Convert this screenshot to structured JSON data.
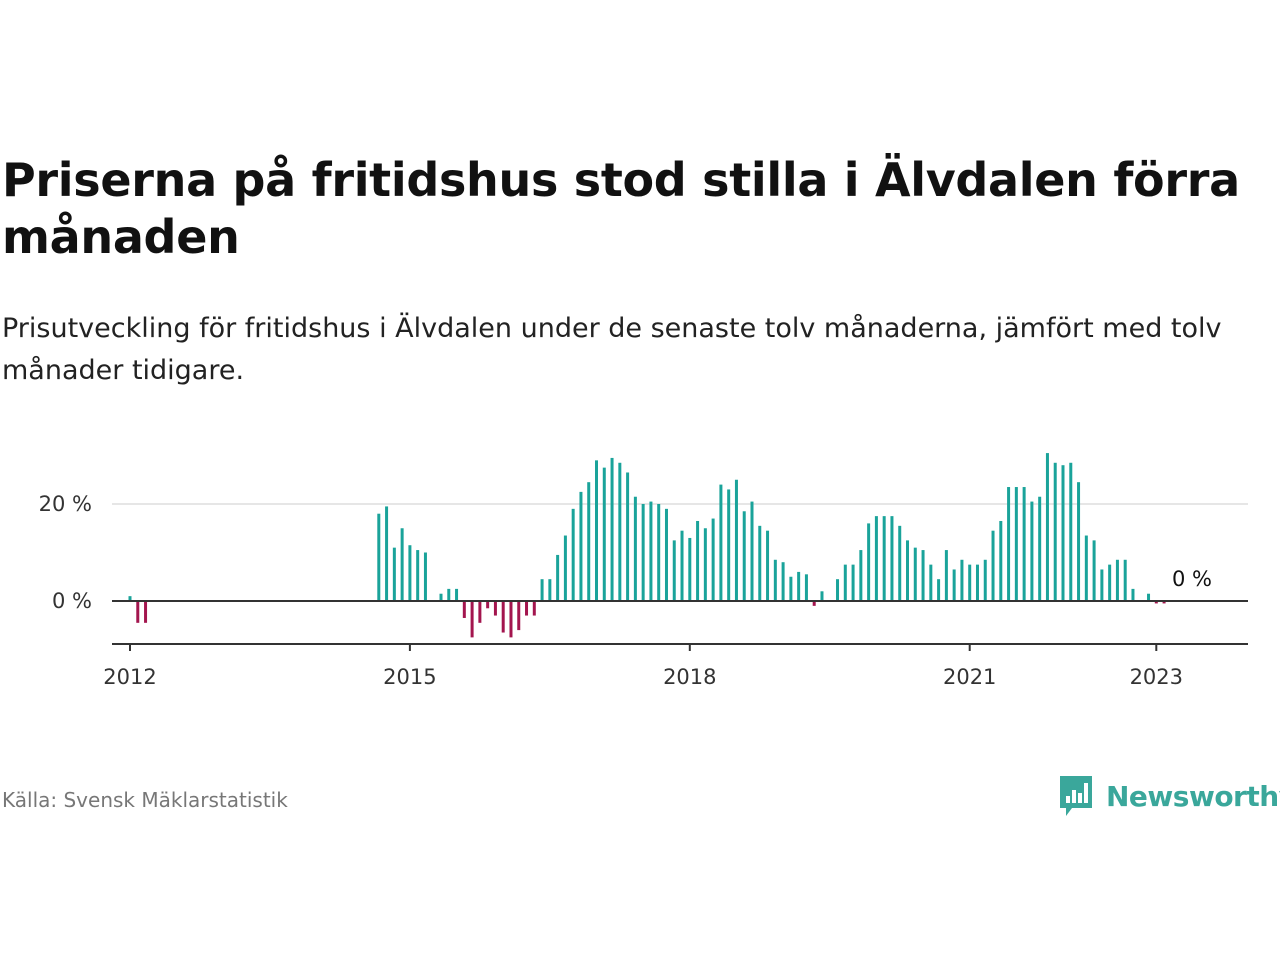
{
  "title": "Priserna på fritidshus stod stilla i Älvdalen förra månaden",
  "subtitle": "Prisutveckling för fritidshus i Älvdalen under de senaste tolv månaderna, jämfört med tolv månader tidigare.",
  "source": "Källa: Svensk Mäklarstatistik",
  "brand": {
    "name": "Newsworthy",
    "icon": "bar-chart-speech-bubble-icon",
    "color": "#3aa79b"
  },
  "colors": {
    "positive": "#1aa39a",
    "negative": "#a3154e",
    "axis": "#333333",
    "grid": "#dddddd"
  },
  "chart_data": {
    "type": "bar",
    "title": "Priserna på fritidshus stod stilla i Älvdalen förra månaden",
    "subtitle": "Prisutveckling för fritidshus i Älvdalen under de senaste tolv månaderna, jämfört med tolv månader tidigare.",
    "xlabel": "",
    "ylabel": "",
    "unit": "%",
    "x_start": "2011-12",
    "x_end": "2023-06",
    "ylim": [
      -9,
      32
    ],
    "y_ticks": [
      {
        "value": 0,
        "label": "0 %"
      },
      {
        "value": 20,
        "label": "20 %"
      }
    ],
    "x_ticks": [
      {
        "date": "2012-01",
        "label": "2012"
      },
      {
        "date": "2015-01",
        "label": "2015"
      },
      {
        "date": "2018-01",
        "label": "2018"
      },
      {
        "date": "2021-01",
        "label": "2021"
      },
      {
        "date": "2023-01",
        "label": "2023"
      }
    ],
    "grid": "horizontal",
    "series": [
      {
        "values": [
          [
            "2012-01",
            1
          ],
          [
            "2012-02",
            -4.5
          ],
          [
            "2012-03",
            -4.5
          ],
          [
            "2014-09",
            18
          ],
          [
            "2014-10",
            19.5
          ],
          [
            "2014-11",
            11
          ],
          [
            "2014-12",
            15
          ],
          [
            "2015-01",
            11.5
          ],
          [
            "2015-02",
            10.5
          ],
          [
            "2015-03",
            10
          ],
          [
            "2015-05",
            1.5
          ],
          [
            "2015-06",
            2.5
          ],
          [
            "2015-07",
            2.5
          ],
          [
            "2015-08",
            -3.5
          ],
          [
            "2015-09",
            -7.5
          ],
          [
            "2015-10",
            -4.5
          ],
          [
            "2015-11",
            -1.5
          ],
          [
            "2015-12",
            -3
          ],
          [
            "2016-01",
            -6.5
          ],
          [
            "2016-02",
            -7.5
          ],
          [
            "2016-03",
            -6
          ],
          [
            "2016-04",
            -3
          ],
          [
            "2016-05",
            -3
          ],
          [
            "2016-06",
            4.5
          ],
          [
            "2016-07",
            4.5
          ],
          [
            "2016-08",
            9.5
          ],
          [
            "2016-09",
            13.5
          ],
          [
            "2016-10",
            19
          ],
          [
            "2016-11",
            22.5
          ],
          [
            "2016-12",
            24.5
          ],
          [
            "2017-01",
            29
          ],
          [
            "2017-02",
            27.5
          ],
          [
            "2017-03",
            29.5
          ],
          [
            "2017-04",
            28.5
          ],
          [
            "2017-05",
            26.5
          ],
          [
            "2017-06",
            21.5
          ],
          [
            "2017-07",
            20
          ],
          [
            "2017-08",
            20.5
          ],
          [
            "2017-09",
            20
          ],
          [
            "2017-10",
            19
          ],
          [
            "2017-11",
            12.5
          ],
          [
            "2017-12",
            14.5
          ],
          [
            "2018-01",
            13
          ],
          [
            "2018-02",
            16.5
          ],
          [
            "2018-03",
            15
          ],
          [
            "2018-04",
            17
          ],
          [
            "2018-05",
            24
          ],
          [
            "2018-06",
            23
          ],
          [
            "2018-07",
            25
          ],
          [
            "2018-08",
            18.5
          ],
          [
            "2018-09",
            20.5
          ],
          [
            "2018-10",
            15.5
          ],
          [
            "2018-11",
            14.5
          ],
          [
            "2018-12",
            8.5
          ],
          [
            "2019-01",
            8
          ],
          [
            "2019-02",
            5
          ],
          [
            "2019-03",
            6
          ],
          [
            "2019-04",
            5.5
          ],
          [
            "2019-05",
            -1
          ],
          [
            "2019-06",
            2
          ],
          [
            "2019-08",
            4.5
          ],
          [
            "2019-09",
            7.5
          ],
          [
            "2019-10",
            7.5
          ],
          [
            "2019-11",
            10.5
          ],
          [
            "2019-12",
            16
          ],
          [
            "2020-01",
            17.5
          ],
          [
            "2020-02",
            17.5
          ],
          [
            "2020-03",
            17.5
          ],
          [
            "2020-04",
            15.5
          ],
          [
            "2020-05",
            12.5
          ],
          [
            "2020-06",
            11
          ],
          [
            "2020-07",
            10.5
          ],
          [
            "2020-08",
            7.5
          ],
          [
            "2020-09",
            4.5
          ],
          [
            "2020-10",
            10.5
          ],
          [
            "2020-11",
            6.5
          ],
          [
            "2020-12",
            8.5
          ],
          [
            "2021-01",
            7.5
          ],
          [
            "2021-02",
            7.5
          ],
          [
            "2021-03",
            8.5
          ],
          [
            "2021-04",
            14.5
          ],
          [
            "2021-05",
            16.5
          ],
          [
            "2021-06",
            23.5
          ],
          [
            "2021-07",
            23.5
          ],
          [
            "2021-08",
            23.5
          ],
          [
            "2021-09",
            20.5
          ],
          [
            "2021-10",
            21.5
          ],
          [
            "2021-11",
            30.5
          ],
          [
            "2021-12",
            28.5
          ],
          [
            "2022-01",
            28
          ],
          [
            "2022-02",
            28.5
          ],
          [
            "2022-03",
            24.5
          ],
          [
            "2022-04",
            13.5
          ],
          [
            "2022-05",
            12.5
          ],
          [
            "2022-06",
            6.5
          ],
          [
            "2022-07",
            7.5
          ],
          [
            "2022-08",
            8.5
          ],
          [
            "2022-09",
            8.5
          ],
          [
            "2022-10",
            2.5
          ],
          [
            "2022-12",
            1.5
          ],
          [
            "2023-01",
            -0.5
          ],
          [
            "2023-02",
            -0.5
          ]
        ]
      }
    ],
    "annotations": [
      {
        "date": "2023-02",
        "value": 0,
        "label": "0 %"
      }
    ]
  }
}
